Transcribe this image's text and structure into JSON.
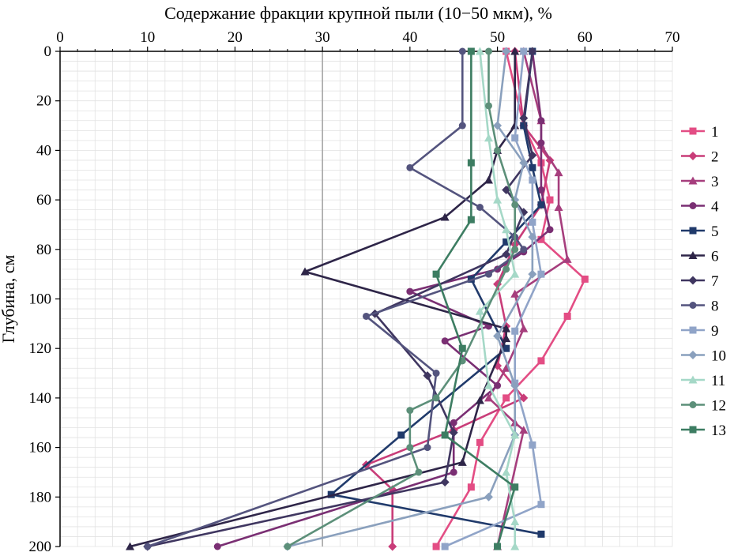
{
  "chart_data": {
    "type": "line",
    "title": "",
    "xlabel": "Содержание фракции крупной пыли (10−50 мкм), %",
    "ylabel": "Глубина, см",
    "x_axis_position": "top",
    "y_axis_inverted": true,
    "xlim": [
      0,
      70
    ],
    "ylim": [
      0,
      200
    ],
    "x_ticks": [
      "0",
      "10",
      "20",
      "30",
      "40",
      "50",
      "60",
      "70"
    ],
    "y_ticks": [
      "0",
      "20",
      "40",
      "60",
      "80",
      "100",
      "120",
      "140",
      "160",
      "180",
      "200"
    ],
    "reference_line_x": 30,
    "grid": "minor vertical and horizontal",
    "legend_position": "right",
    "series": [
      {
        "name": "1",
        "color": "#e34d84",
        "marker": "square",
        "points": [
          [
            51,
            0
          ],
          [
            53,
            30
          ],
          [
            55,
            45
          ],
          [
            56,
            60
          ],
          [
            55,
            76
          ],
          [
            60,
            92
          ],
          [
            58,
            107
          ],
          [
            55,
            125
          ],
          [
            51,
            140
          ],
          [
            48,
            158
          ],
          [
            47,
            176
          ],
          [
            43,
            200
          ]
        ]
      },
      {
        "name": "2",
        "color": "#c93d79",
        "marker": "diamond",
        "points": [
          [
            52,
            0
          ],
          [
            53,
            30
          ],
          [
            56,
            44
          ],
          [
            55,
            62
          ],
          [
            52,
            78
          ],
          [
            50,
            94
          ],
          [
            51,
            111
          ],
          [
            50,
            127
          ],
          [
            53,
            140
          ],
          [
            45,
            153
          ],
          [
            35,
            167
          ],
          [
            38,
            177
          ],
          [
            38,
            200
          ]
        ]
      },
      {
        "name": "3",
        "color": "#a63e7d",
        "marker": "triangle",
        "points": [
          [
            53,
            0
          ],
          [
            55,
            28
          ],
          [
            55,
            38
          ],
          [
            57,
            49
          ],
          [
            57,
            63
          ],
          [
            58,
            84
          ],
          [
            52,
            98
          ],
          [
            53,
            112
          ],
          [
            51,
            128
          ],
          [
            49,
            140
          ],
          [
            52,
            150
          ],
          [
            53,
            153
          ],
          [
            50,
            200
          ]
        ]
      },
      {
        "name": "4",
        "color": "#7a2f73",
        "marker": "circle",
        "points": [
          [
            54,
            0
          ],
          [
            55,
            28
          ],
          [
            55,
            37
          ],
          [
            55,
            56
          ],
          [
            56,
            72
          ],
          [
            53,
            81
          ],
          [
            50,
            88
          ],
          [
            40,
            97
          ],
          [
            49,
            111
          ],
          [
            44,
            117
          ],
          [
            50,
            135
          ],
          [
            45,
            150
          ],
          [
            45,
            170
          ],
          [
            18,
            200
          ]
        ]
      },
      {
        "name": "5",
        "color": "#203a6b",
        "marker": "square",
        "points": [
          [
            54,
            0
          ],
          [
            53,
            30
          ],
          [
            54,
            47
          ],
          [
            55,
            62
          ],
          [
            51,
            77
          ],
          [
            47,
            92
          ],
          [
            51,
            120
          ],
          [
            39,
            155
          ],
          [
            31,
            179
          ],
          [
            55,
            195
          ]
        ]
      },
      {
        "name": "6",
        "color": "#2e2548",
        "marker": "triangle",
        "points": [
          [
            52,
            0
          ],
          [
            52,
            30
          ],
          [
            50,
            40
          ],
          [
            49,
            52
          ],
          [
            44,
            67
          ],
          [
            28,
            89
          ],
          [
            51,
            112
          ],
          [
            51,
            116
          ],
          [
            48,
            141
          ],
          [
            46,
            166
          ],
          [
            8,
            200
          ]
        ]
      },
      {
        "name": "7",
        "color": "#3f3660",
        "marker": "diamond",
        "points": [
          [
            54,
            0
          ],
          [
            53,
            27
          ],
          [
            54,
            42
          ],
          [
            51,
            56
          ],
          [
            53,
            65
          ],
          [
            51,
            82
          ],
          [
            36,
            106
          ],
          [
            42,
            131
          ],
          [
            45,
            154
          ],
          [
            44,
            174
          ],
          [
            10,
            200
          ]
        ]
      },
      {
        "name": "8",
        "color": "#54547e",
        "marker": "circle",
        "points": [
          [
            46,
            0
          ],
          [
            46,
            30
          ],
          [
            40,
            47
          ],
          [
            48,
            63
          ],
          [
            52,
            75
          ],
          [
            53,
            80
          ],
          [
            49,
            90
          ],
          [
            35,
            107
          ],
          [
            43,
            130
          ],
          [
            42,
            160
          ],
          [
            10,
            200
          ]
        ]
      },
      {
        "name": "9",
        "color": "#90a4c8",
        "marker": "square",
        "points": [
          [
            53,
            0
          ],
          [
            52,
            35
          ],
          [
            54,
            52
          ],
          [
            54,
            69
          ],
          [
            55,
            90
          ],
          [
            52,
            113
          ],
          [
            52,
            134
          ],
          [
            54,
            159
          ],
          [
            55,
            183
          ],
          [
            44,
            200
          ]
        ]
      },
      {
        "name": "10",
        "color": "#8aa0bd",
        "marker": "diamond",
        "points": [
          [
            51,
            0
          ],
          [
            50,
            30
          ],
          [
            53,
            45
          ],
          [
            52,
            60
          ],
          [
            54,
            75
          ],
          [
            54,
            90
          ],
          [
            50,
            115
          ],
          [
            52,
            135
          ],
          [
            52,
            155
          ],
          [
            49,
            180
          ],
          [
            26,
            200
          ]
        ]
      },
      {
        "name": "11",
        "color": "#a5d8c7",
        "marker": "triangle",
        "points": [
          [
            48,
            0
          ],
          [
            49,
            35
          ],
          [
            50,
            60
          ],
          [
            51,
            72
          ],
          [
            52,
            90
          ],
          [
            48,
            105
          ],
          [
            49,
            135
          ],
          [
            52,
            155
          ],
          [
            51,
            170
          ],
          [
            52,
            190
          ],
          [
            52,
            200
          ]
        ]
      },
      {
        "name": "12",
        "color": "#5c8f79",
        "marker": "circle",
        "points": [
          [
            49,
            0
          ],
          [
            49,
            22
          ],
          [
            50,
            40
          ],
          [
            52,
            62
          ],
          [
            52,
            80
          ],
          [
            51,
            88
          ],
          [
            46,
            125
          ],
          [
            43,
            140
          ],
          [
            40,
            145
          ],
          [
            40,
            160
          ],
          [
            41,
            170
          ],
          [
            26,
            200
          ]
        ]
      },
      {
        "name": "13",
        "color": "#3d7d62",
        "marker": "square",
        "points": [
          [
            47,
            0
          ],
          [
            47,
            45
          ],
          [
            47,
            68
          ],
          [
            43,
            90
          ],
          [
            46,
            120
          ],
          [
            44,
            155
          ],
          [
            52,
            176
          ],
          [
            50,
            200
          ]
        ]
      }
    ]
  }
}
